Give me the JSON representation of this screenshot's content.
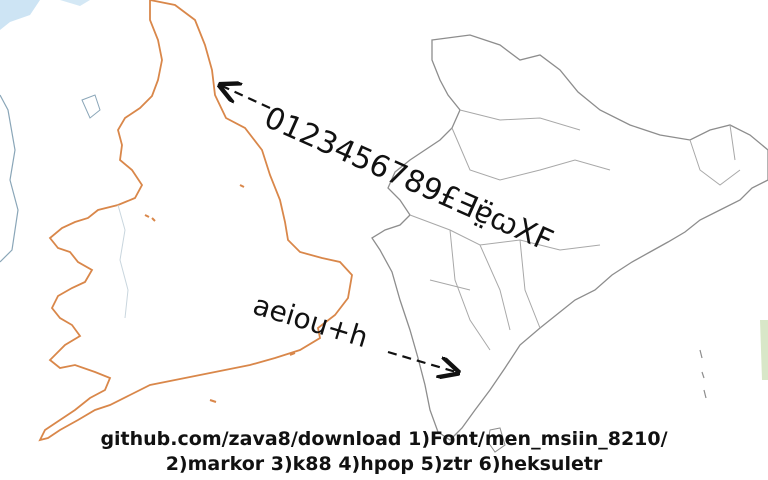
{
  "labels": {
    "top_text": "0123456789£∃ɐ̤̈ꞷXF",
    "mid_text": "aeiou+h"
  },
  "caption": {
    "line1": "github.com/zava8/download 1)Font/men_msiin_8210/",
    "line2": "2)markor 3)k88 4)hpop 5)ztr 6)heksuletr"
  },
  "colors": {
    "england_coast": "#d9874a",
    "map_outline": "#9a9a9a",
    "sea_accent": "#6fa8dc",
    "text": "#111111"
  }
}
